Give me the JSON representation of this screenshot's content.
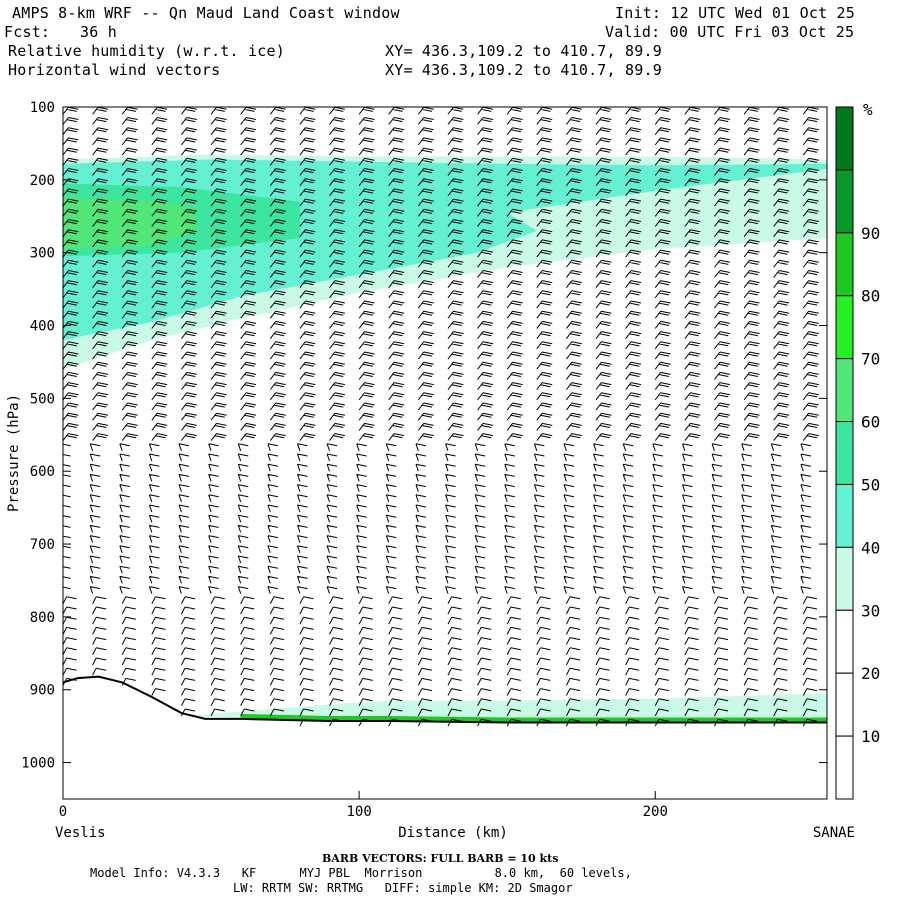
{
  "header": {
    "title": "AMPS 8-km WRF -- Qn Maud Land Coast window",
    "fcst_label": "Fcst:",
    "fcst_value": "36 h",
    "field1": "Relative humidity (w.r.t. ice)",
    "field2": "Horizontal wind vectors",
    "init": "Init: 12 UTC Wed 01 Oct 25",
    "valid": "Valid: 00 UTC Fri 03 Oct 25",
    "xy1": "XY= 436.3,109.2 to 410.7, 89.9",
    "xy2": "XY= 436.3,109.2 to 410.7, 89.9"
  },
  "footer": {
    "barb_note": "BARB VECTORS: FULL BARB = 10 kts",
    "model_info": "Model Info: V4.3.3   KF      MYJ PBL  Morrison          8.0 km,  60 levels,",
    "physics": "LW: RRTM SW: RRTMG   DIFF: simple KM: 2D Smagor"
  },
  "chart_data": {
    "type": "heatmap",
    "title": "Relative humidity (w.r.t. ice) and Horizontal wind vectors cross-section",
    "xlabel": "Distance (km)",
    "ylabel": "Pressure (hPa)",
    "xlim": [
      0,
      258
    ],
    "ylim": [
      1050,
      100
    ],
    "x_ticks": [
      0,
      100,
      200
    ],
    "y_ticks": [
      100,
      200,
      300,
      400,
      500,
      600,
      700,
      800,
      900,
      1000
    ],
    "left_endpoint": "Veslis",
    "right_endpoint": "SANAE",
    "colorbar": {
      "unit": "%",
      "levels": [
        10,
        20,
        30,
        40,
        50,
        60,
        70,
        80,
        90
      ],
      "colors": [
        "#ffffff",
        "#ffffff",
        "#ffffff",
        "#c8fae6",
        "#64f0d2",
        "#3ce6a0",
        "#50e678",
        "#28f028",
        "#1ec81e",
        "#0a9628",
        "#00781e"
      ]
    },
    "rh_bands": [
      {
        "level": 30,
        "color": "#c8fae6",
        "top": [
          [
            0,
            172
          ],
          [
            50,
            165
          ],
          [
            100,
            168
          ],
          [
            150,
            168
          ],
          [
            200,
            168
          ],
          [
            258,
            172
          ]
        ],
        "bottom": [
          [
            0,
            460
          ],
          [
            30,
            420
          ],
          [
            60,
            390
          ],
          [
            100,
            355
          ],
          [
            150,
            320
          ],
          [
            200,
            295
          ],
          [
            258,
            280
          ]
        ]
      },
      {
        "level": 40,
        "color": "#64f0d2",
        "top": [
          [
            0,
            178
          ],
          [
            50,
            172
          ],
          [
            100,
            175
          ],
          [
            150,
            178
          ],
          [
            200,
            180
          ],
          [
            258,
            178
          ]
        ],
        "bottom": [
          [
            0,
            420
          ],
          [
            30,
            395
          ],
          [
            60,
            360
          ],
          [
            100,
            330
          ],
          [
            140,
            300
          ],
          [
            160,
            270
          ],
          [
            150,
            245
          ],
          [
            200,
            215
          ],
          [
            258,
            185
          ]
        ]
      },
      {
        "level": 50,
        "color": "#3ce6a0",
        "top": [
          [
            0,
            205
          ],
          [
            40,
            210
          ],
          [
            80,
            230
          ]
        ],
        "bottom": [
          [
            0,
            305
          ],
          [
            40,
            300
          ],
          [
            80,
            280
          ]
        ]
      },
      {
        "level": 60,
        "color": "#50e678",
        "top": [
          [
            0,
            225
          ],
          [
            30,
            228
          ],
          [
            45,
            240
          ]
        ],
        "bottom": [
          [
            0,
            295
          ],
          [
            30,
            290
          ],
          [
            45,
            270
          ]
        ]
      }
    ],
    "surface_profile": [
      [
        0,
        890
      ],
      [
        5,
        884
      ],
      [
        12,
        882
      ],
      [
        20,
        890
      ],
      [
        30,
        910
      ],
      [
        40,
        932
      ],
      [
        48,
        940
      ],
      [
        60,
        940
      ],
      [
        90,
        943
      ],
      [
        110,
        943
      ],
      [
        150,
        945
      ],
      [
        200,
        945
      ],
      [
        258,
        945
      ]
    ],
    "low_level_band": {
      "level": 30,
      "color": "#c8fae6",
      "top": [
        [
          45,
          935
        ],
        [
          90,
          920
        ],
        [
          110,
          915
        ],
        [
          150,
          915
        ],
        [
          200,
          912
        ],
        [
          258,
          905
        ]
      ]
    },
    "wind_columns_km": [
      0,
      10,
      20,
      30,
      40,
      50,
      60,
      70,
      80,
      90,
      100,
      110,
      120,
      130,
      140,
      150,
      160,
      170,
      180,
      190,
      200,
      210,
      220,
      230,
      240,
      250
    ]
  }
}
